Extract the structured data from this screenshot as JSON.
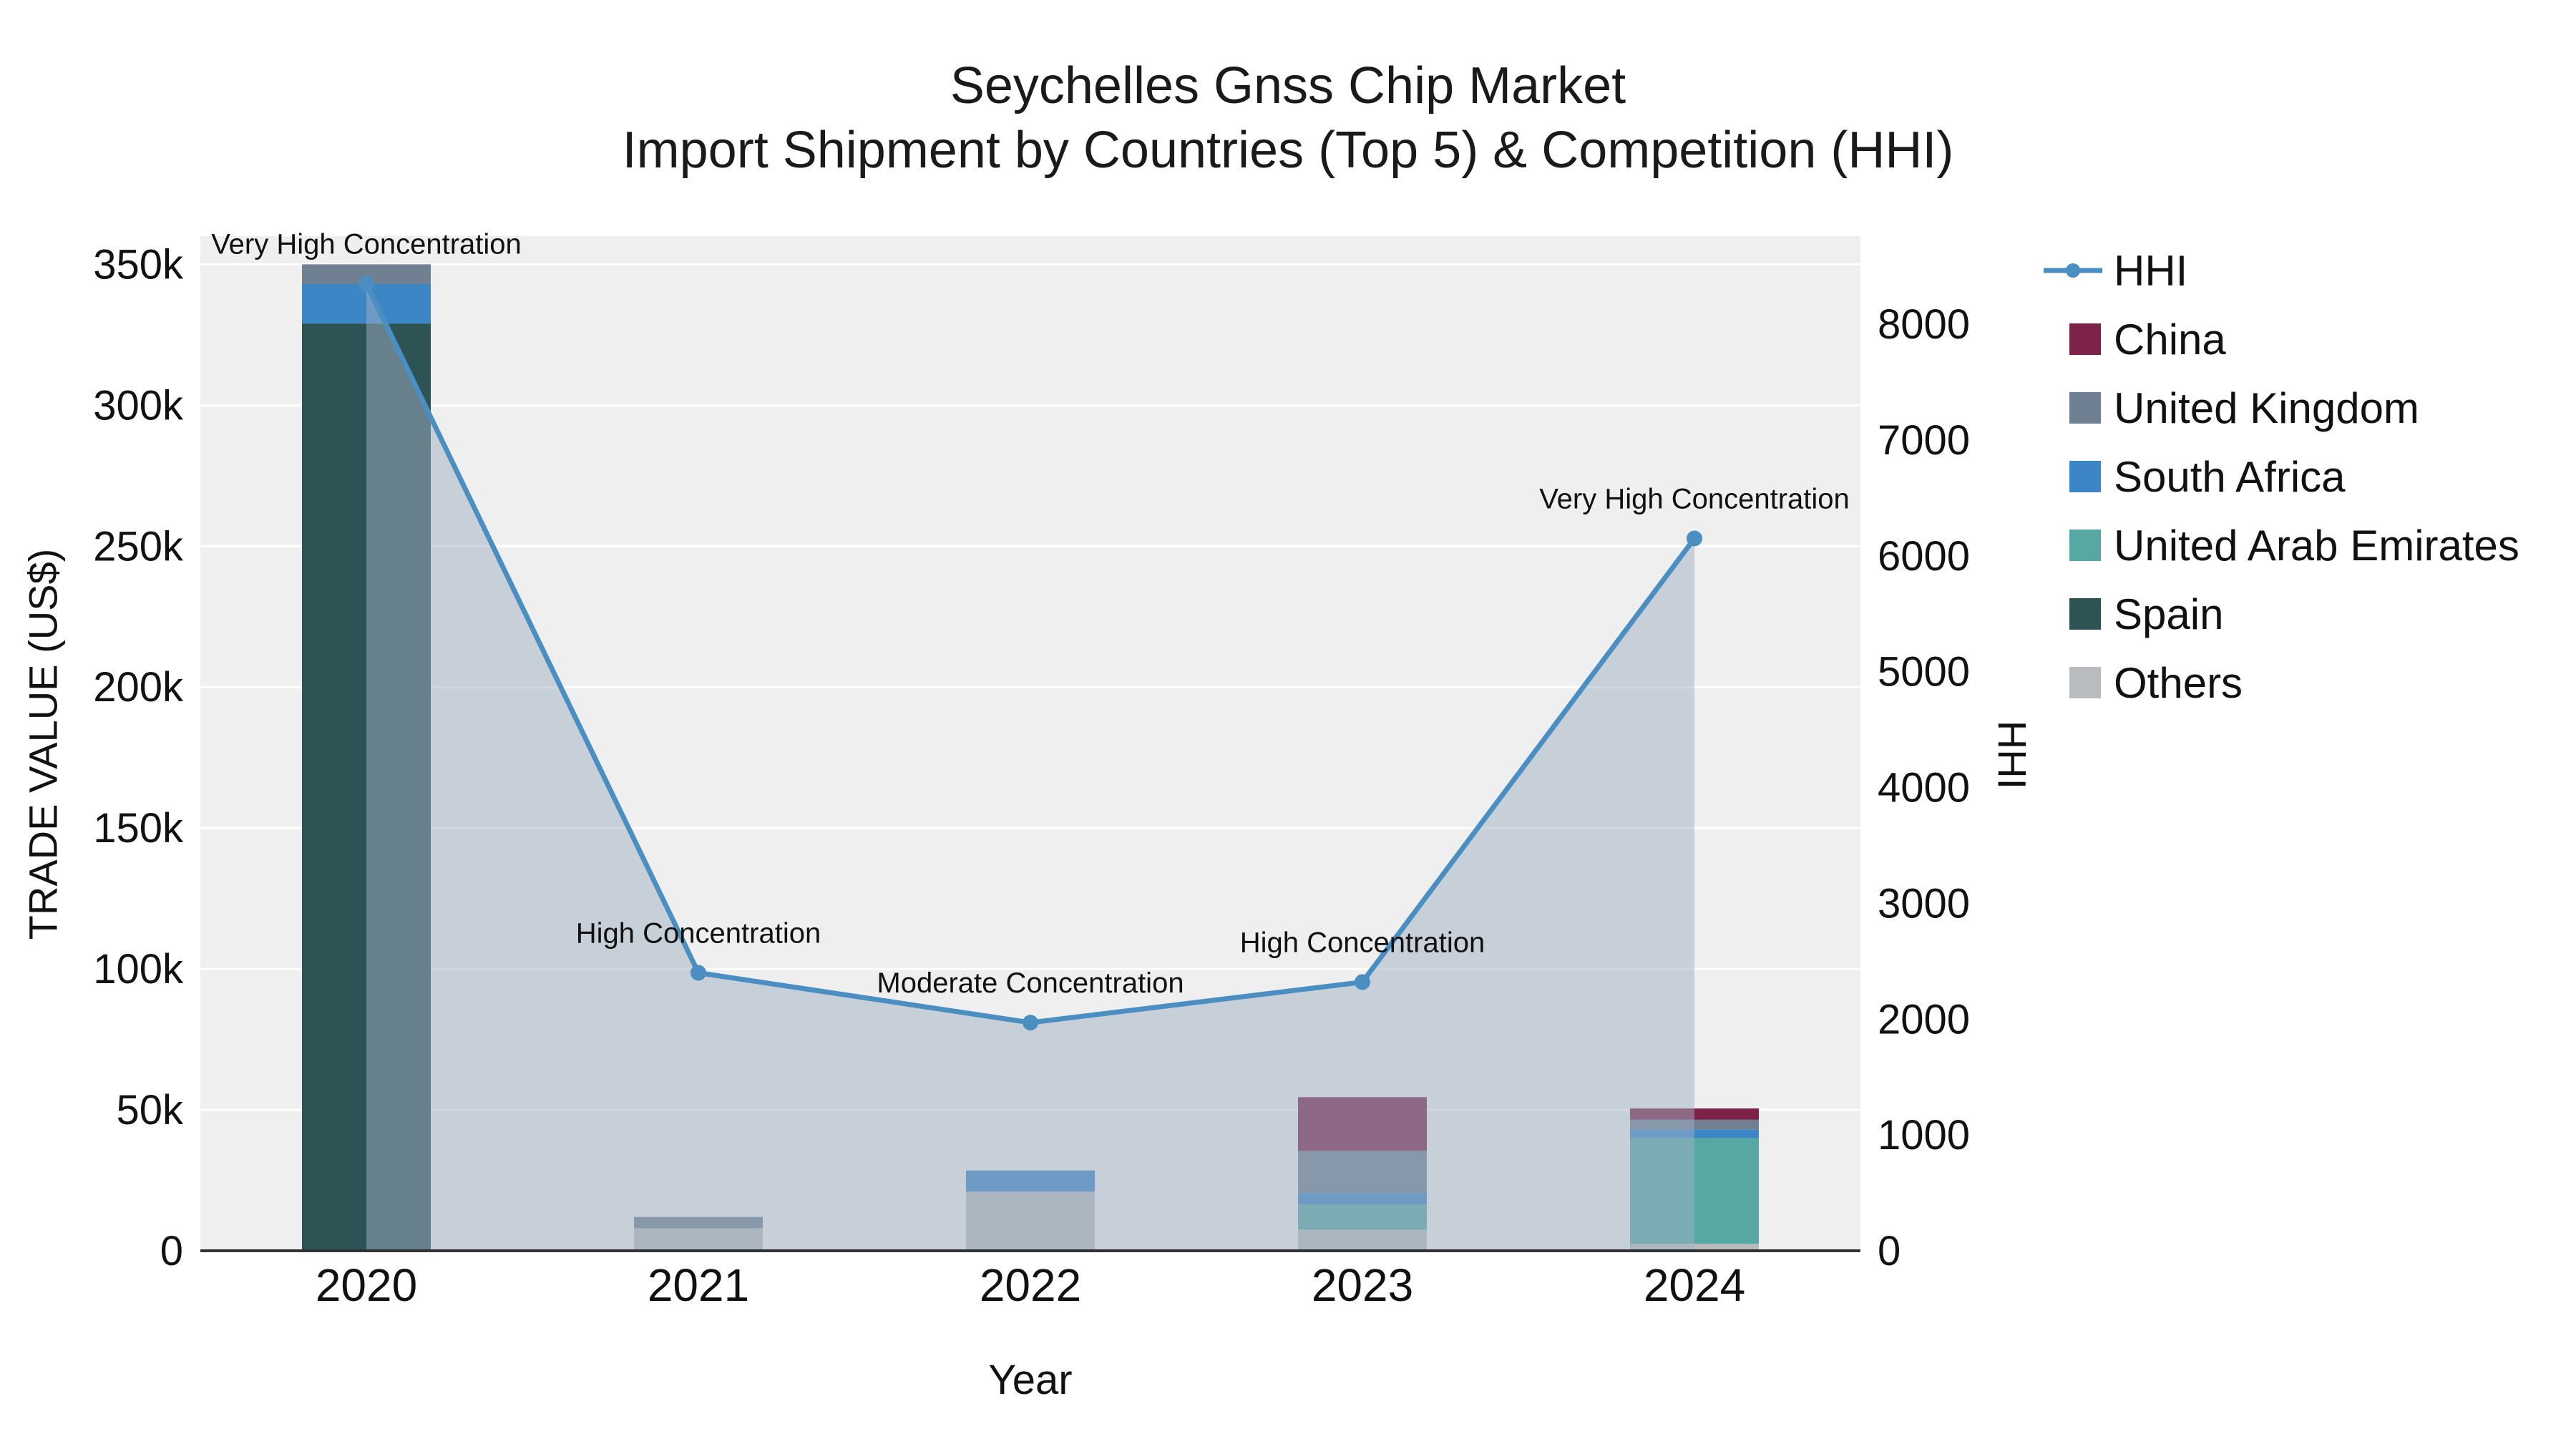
{
  "title": {
    "line1": "Seychelles Gnss Chip Market",
    "line2": "Import Shipment by Countries (Top 5) & Competition (HHI)"
  },
  "axes": {
    "x_label": "Year",
    "y_left_label": "TRADE VALUE (US$)",
    "y_right_label": "HHI"
  },
  "chart_data": {
    "type": "bar",
    "subtype": "stacked-bars-with-line-area-dual-axis",
    "categories": [
      "2020",
      "2021",
      "2022",
      "2023",
      "2024"
    ],
    "bar_series_stack_order": [
      "Others",
      "Spain",
      "United Arab Emirates",
      "South Africa",
      "United Kingdom",
      "China"
    ],
    "series": [
      {
        "name": "China",
        "color": "#7d2248",
        "values": [
          0,
          0,
          0,
          19000,
          4000
        ]
      },
      {
        "name": "United Kingdom",
        "color": "#6f8093",
        "values": [
          7000,
          4000,
          0,
          15000,
          3500
        ]
      },
      {
        "name": "South Africa",
        "color": "#3d86c6",
        "values": [
          14000,
          0,
          7500,
          4000,
          3000
        ]
      },
      {
        "name": "United Arab Emirates",
        "color": "#57a7a3",
        "values": [
          0,
          0,
          0,
          9000,
          37500
        ]
      },
      {
        "name": "Spain",
        "color": "#2d5355",
        "values": [
          329000,
          0,
          0,
          0,
          0
        ]
      },
      {
        "name": "Others",
        "color": "#b9bcbe",
        "values": [
          0,
          8000,
          21000,
          7500,
          2500
        ]
      }
    ],
    "hhi": {
      "name": "HHI",
      "color": "#4a8ec2",
      "fill": "rgba(160,175,195,0.5)",
      "values": [
        8350,
        2400,
        1970,
        2320,
        6150
      ],
      "annotations": [
        "Very High Concentration",
        "High Concentration",
        "Moderate Concentration",
        "High Concentration",
        "Very High Concentration"
      ]
    },
    "y_left": {
      "max": 360000,
      "ticks": [
        0,
        50000,
        100000,
        150000,
        200000,
        250000,
        300000,
        350000
      ],
      "tick_labels": [
        "0",
        "50k",
        "100k",
        "150k",
        "200k",
        "250k",
        "300k",
        "350k"
      ]
    },
    "y_right": {
      "max": 8760,
      "ticks": [
        0,
        1000,
        2000,
        3000,
        4000,
        5000,
        6000,
        7000,
        8000
      ],
      "tick_labels": [
        "0",
        "1000",
        "2000",
        "3000",
        "4000",
        "5000",
        "6000",
        "7000",
        "8000"
      ]
    },
    "legend": [
      {
        "label": "HHI",
        "type": "line",
        "color": "#4a8ec2"
      },
      {
        "label": "China",
        "type": "square",
        "color": "#7d2248"
      },
      {
        "label": "United Kingdom",
        "type": "square",
        "color": "#6f8093"
      },
      {
        "label": "South Africa",
        "type": "square",
        "color": "#3d86c6"
      },
      {
        "label": "United Arab Emirates",
        "type": "square",
        "color": "#57a7a3"
      },
      {
        "label": "Spain",
        "type": "square",
        "color": "#2d5355"
      },
      {
        "label": "Others",
        "type": "square",
        "color": "#b9bcbe"
      }
    ],
    "plot_background": "#efefef",
    "gridline_color": "#ffffff",
    "axis_line_color": "#333333"
  }
}
